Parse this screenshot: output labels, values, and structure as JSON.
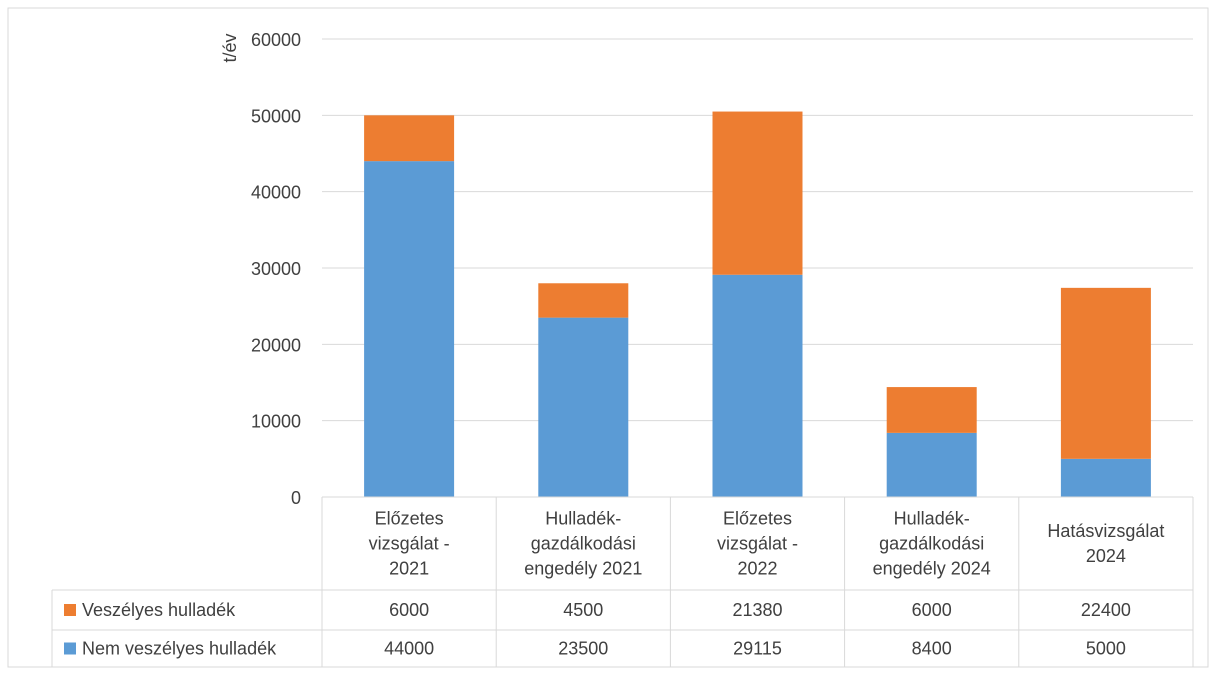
{
  "chart_data": {
    "type": "bar",
    "stacked": true,
    "ylabel": "t/év",
    "ylim": [
      0,
      60000
    ],
    "yticks": [
      "0",
      "10000",
      "20000",
      "30000",
      "40000",
      "50000",
      "60000"
    ],
    "grid": true,
    "legend": "data-table",
    "categories": [
      [
        "Előzetes",
        "vizsgálat -",
        "2021"
      ],
      [
        "Hulladék-",
        "gazdálkodási",
        "engedély 2021"
      ],
      [
        "Előzetes",
        "vizsgálat -",
        "2022"
      ],
      [
        "Hulladék-",
        "gazdálkodási",
        "engedély 2024"
      ],
      [
        "Hatásvizsgálat",
        "2024"
      ]
    ],
    "series": [
      {
        "name": "Nem veszélyes hulladék",
        "color": "#5b9bd5",
        "values": [
          44000,
          23500,
          29115,
          8400,
          5000
        ]
      },
      {
        "name": "Veszélyes hulladék",
        "color": "#ed7d31",
        "values": [
          6000,
          4500,
          21380,
          6000,
          22400
        ]
      }
    ]
  }
}
